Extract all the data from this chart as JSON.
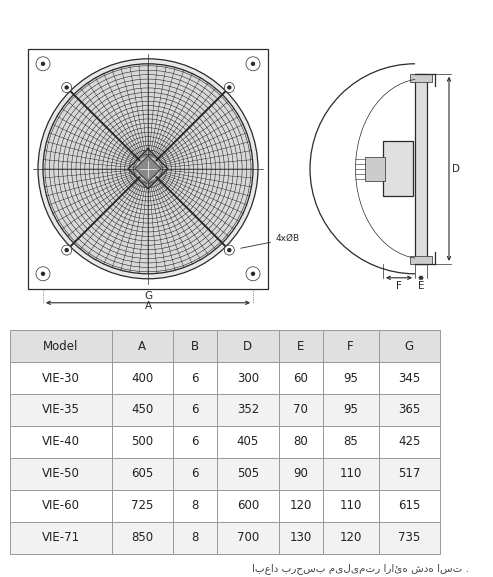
{
  "table_headers": [
    "Model",
    "A",
    "B",
    "D",
    "E",
    "F",
    "G"
  ],
  "table_data": [
    [
      "VIE-30",
      "400",
      "6",
      "300",
      "60",
      "95",
      "345"
    ],
    [
      "VIE-35",
      "450",
      "6",
      "352",
      "70",
      "95",
      "365"
    ],
    [
      "VIE-40",
      "500",
      "6",
      "405",
      "80",
      "85",
      "425"
    ],
    [
      "VIE-50",
      "605",
      "6",
      "505",
      "90",
      "110",
      "517"
    ],
    [
      "VIE-60",
      "725",
      "8",
      "600",
      "120",
      "110",
      "615"
    ],
    [
      "VIE-71",
      "850",
      "8",
      "700",
      "130",
      "120",
      "735"
    ]
  ],
  "footer_text": "ابعاد برحسب میلیمتر ارائه شده است .",
  "bg_color": "#ffffff",
  "header_bg": "#e0e0e0",
  "grid_color": "#999999",
  "line_color": "#2a2a2a",
  "text_color": "#222222"
}
